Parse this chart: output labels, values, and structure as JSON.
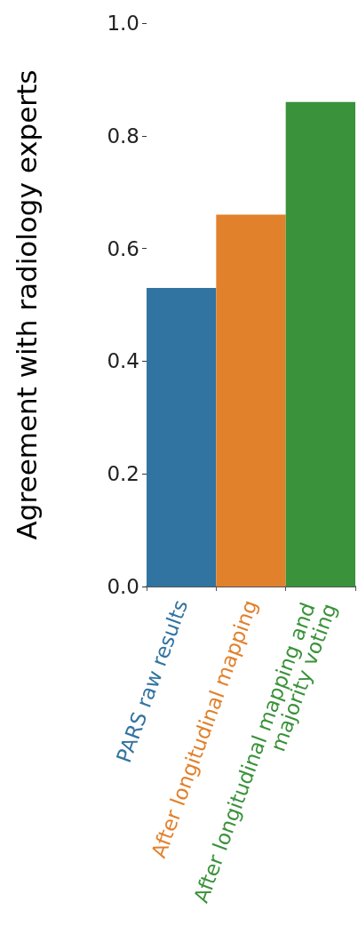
{
  "chart_data": {
    "type": "bar",
    "ylabel": "Agreement with radiology experts",
    "categories": [
      "PARS raw results",
      "After longitudinal mapping",
      "After longitudinal mapping and majority voting"
    ],
    "values": [
      0.53,
      0.66,
      0.86
    ],
    "colors": [
      "#3274a1",
      "#e1812c",
      "#3a923a"
    ],
    "ylim": [
      0,
      1.0
    ],
    "yticks": [
      {
        "value": 0,
        "label": "0.0"
      },
      0.2,
      0.4,
      0.6,
      0.8,
      {
        "value": 1,
        "label": "1.0"
      }
    ],
    "grid": false
  }
}
